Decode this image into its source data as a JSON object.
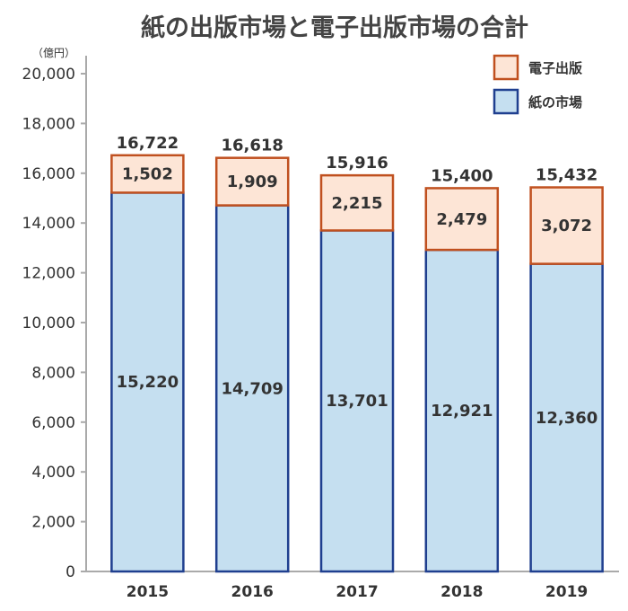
{
  "chart_data": {
    "type": "bar",
    "stacked": true,
    "title": "紙の出版市場と電子出版市場の合計",
    "unit_label": "（億円）",
    "categories": [
      "2015",
      "2016",
      "2017",
      "2018",
      "2019"
    ],
    "series": [
      {
        "name": "紙の市場",
        "values": [
          15220,
          14709,
          13701,
          12921,
          12360
        ],
        "color": "#c5dff0",
        "border": "#1f3f8f"
      },
      {
        "name": "電子出版",
        "values": [
          1502,
          1909,
          2215,
          2479,
          3072
        ],
        "color": "#fde5d6",
        "border": "#c0501f"
      }
    ],
    "totals": [
      16722,
      16618,
      15916,
      15400,
      15432
    ],
    "ylim": [
      0,
      20000
    ],
    "yticks": [
      0,
      2000,
      4000,
      6000,
      8000,
      10000,
      12000,
      14000,
      16000,
      18000,
      20000
    ],
    "ytick_labels": [
      "0",
      "2,000",
      "4,000",
      "6,000",
      "8,000",
      "10,000",
      "12,000",
      "14,000",
      "16,000",
      "18,000",
      "20,000"
    ],
    "legend_placement": "top-right",
    "grid": false
  }
}
